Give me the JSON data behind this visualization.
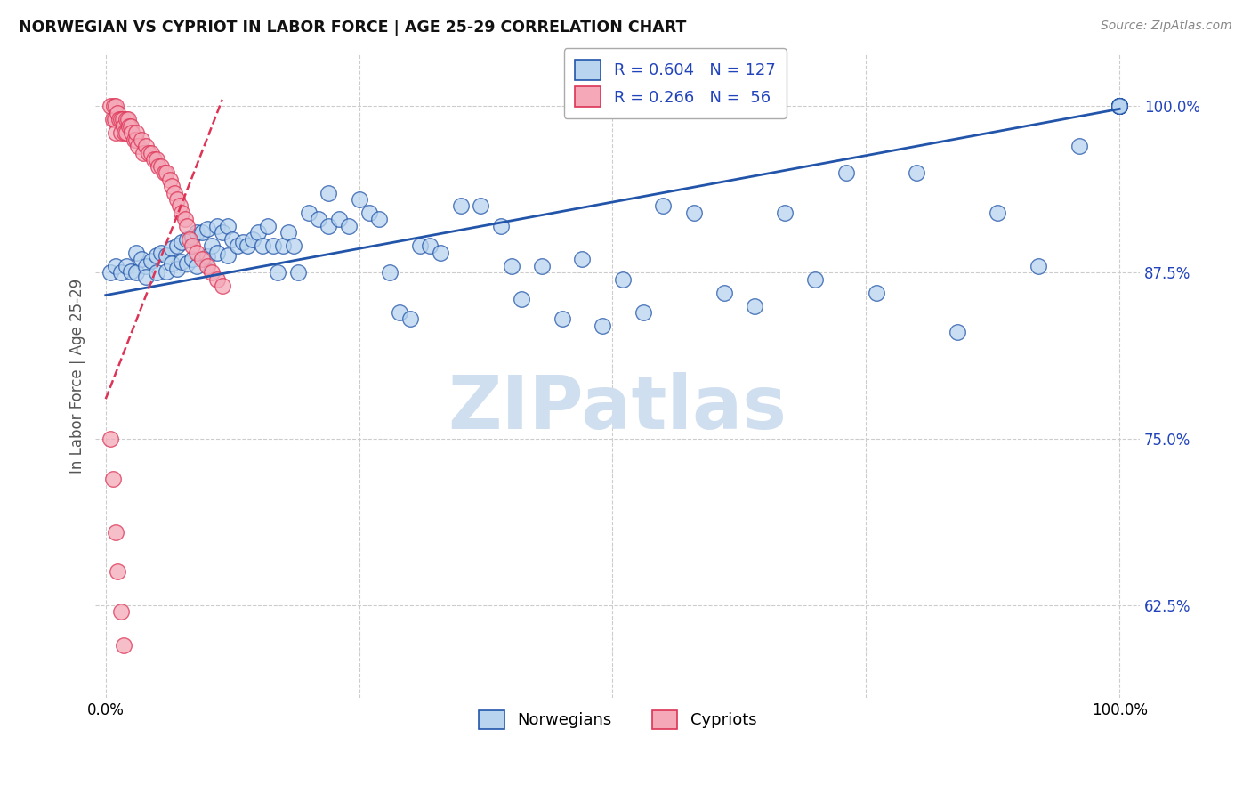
{
  "title": "NORWEGIAN VS CYPRIOT IN LABOR FORCE | AGE 25-29 CORRELATION CHART",
  "source_text": "Source: ZipAtlas.com",
  "ylabel": "In Labor Force | Age 25-29",
  "xlim": [
    -0.01,
    1.02
  ],
  "ylim": [
    0.555,
    1.04
  ],
  "yticks": [
    0.625,
    0.75,
    0.875,
    1.0
  ],
  "ytick_labels": [
    "62.5%",
    "75.0%",
    "87.5%",
    "100.0%"
  ],
  "xticks": [
    0.0,
    0.25,
    0.5,
    0.75,
    1.0
  ],
  "xtick_labels": [
    "0.0%",
    "",
    "",
    "",
    "100.0%"
  ],
  "norwegian_color": "#b8d4ee",
  "cypriot_color": "#f4a8b8",
  "trend_norwegian_color": "#2255aa",
  "trend_cypriot_color": "#dd3355",
  "background_color": "#ffffff",
  "grid_color": "#cccccc",
  "watermark_color": "#d0dff0",
  "r_label_color": "#2244bb",
  "title_color": "#111111",
  "ylabel_color": "#555555",
  "nor_trend_x0": 0.0,
  "nor_trend_y0": 0.858,
  "nor_trend_x1": 1.0,
  "nor_trend_y1": 0.998,
  "cyp_trend_x0": 0.0,
  "cyp_trend_y0": 0.78,
  "cyp_trend_x1": 0.115,
  "cyp_trend_y1": 1.005,
  "norwegian_x": [
    0.005,
    0.01,
    0.015,
    0.02,
    0.025,
    0.03,
    0.03,
    0.035,
    0.04,
    0.04,
    0.045,
    0.05,
    0.05,
    0.055,
    0.06,
    0.06,
    0.065,
    0.065,
    0.07,
    0.07,
    0.075,
    0.075,
    0.08,
    0.08,
    0.085,
    0.085,
    0.09,
    0.09,
    0.095,
    0.1,
    0.1,
    0.105,
    0.11,
    0.11,
    0.115,
    0.12,
    0.12,
    0.125,
    0.13,
    0.135,
    0.14,
    0.145,
    0.15,
    0.155,
    0.16,
    0.165,
    0.17,
    0.175,
    0.18,
    0.185,
    0.19,
    0.2,
    0.21,
    0.22,
    0.22,
    0.23,
    0.24,
    0.25,
    0.26,
    0.27,
    0.28,
    0.29,
    0.3,
    0.31,
    0.32,
    0.33,
    0.35,
    0.37,
    0.39,
    0.4,
    0.41,
    0.43,
    0.45,
    0.47,
    0.49,
    0.51,
    0.53,
    0.55,
    0.58,
    0.61,
    0.64,
    0.67,
    0.7,
    0.73,
    0.76,
    0.8,
    0.84,
    0.88,
    0.92,
    0.96,
    1.0,
    1.0,
    1.0,
    1.0,
    1.0,
    1.0,
    1.0,
    1.0,
    1.0,
    1.0
  ],
  "norwegian_y": [
    0.875,
    0.88,
    0.875,
    0.88,
    0.876,
    0.89,
    0.875,
    0.885,
    0.88,
    0.872,
    0.884,
    0.888,
    0.875,
    0.89,
    0.888,
    0.876,
    0.893,
    0.882,
    0.895,
    0.878,
    0.898,
    0.883,
    0.9,
    0.882,
    0.902,
    0.885,
    0.905,
    0.88,
    0.905,
    0.908,
    0.887,
    0.895,
    0.91,
    0.89,
    0.905,
    0.91,
    0.888,
    0.9,
    0.895,
    0.898,
    0.895,
    0.9,
    0.905,
    0.895,
    0.91,
    0.895,
    0.875,
    0.895,
    0.905,
    0.895,
    0.875,
    0.92,
    0.915,
    0.935,
    0.91,
    0.915,
    0.91,
    0.93,
    0.92,
    0.915,
    0.875,
    0.845,
    0.84,
    0.895,
    0.895,
    0.89,
    0.925,
    0.925,
    0.91,
    0.88,
    0.855,
    0.88,
    0.84,
    0.885,
    0.835,
    0.87,
    0.845,
    0.925,
    0.92,
    0.86,
    0.85,
    0.92,
    0.87,
    0.95,
    0.86,
    0.95,
    0.83,
    0.92,
    0.88,
    0.97,
    1.0,
    1.0,
    1.0,
    1.0,
    1.0,
    1.0,
    1.0,
    1.0,
    1.0,
    1.0
  ],
  "cypriot_x": [
    0.005,
    0.007,
    0.008,
    0.009,
    0.01,
    0.01,
    0.012,
    0.013,
    0.015,
    0.015,
    0.017,
    0.018,
    0.019,
    0.02,
    0.02,
    0.022,
    0.023,
    0.025,
    0.026,
    0.028,
    0.03,
    0.03,
    0.032,
    0.035,
    0.037,
    0.04,
    0.042,
    0.045,
    0.048,
    0.05,
    0.052,
    0.055,
    0.058,
    0.06,
    0.063,
    0.065,
    0.068,
    0.07,
    0.073,
    0.075,
    0.078,
    0.08,
    0.083,
    0.085,
    0.09,
    0.095,
    0.1,
    0.105,
    0.11,
    0.115,
    0.005,
    0.007,
    0.01,
    0.012,
    0.015,
    0.018
  ],
  "cypriot_y": [
    1.0,
    0.99,
    1.0,
    0.99,
    0.98,
    1.0,
    0.995,
    0.99,
    0.99,
    0.98,
    0.99,
    0.985,
    0.98,
    0.99,
    0.98,
    0.99,
    0.985,
    0.985,
    0.98,
    0.975,
    0.975,
    0.98,
    0.97,
    0.975,
    0.965,
    0.97,
    0.965,
    0.965,
    0.96,
    0.96,
    0.955,
    0.955,
    0.95,
    0.95,
    0.945,
    0.94,
    0.935,
    0.93,
    0.925,
    0.92,
    0.915,
    0.91,
    0.9,
    0.895,
    0.89,
    0.885,
    0.88,
    0.875,
    0.87,
    0.865,
    0.75,
    0.72,
    0.68,
    0.65,
    0.62,
    0.595
  ]
}
